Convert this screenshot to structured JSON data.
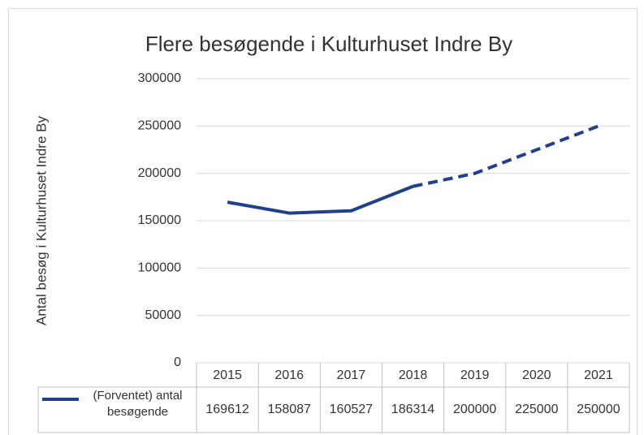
{
  "chart_data": {
    "type": "line",
    "title": "Flere besøgende i Kulturhuset Indre By",
    "y_label": "Antal besøg i Kulturhuset Indre By",
    "categories": [
      "2015",
      "2016",
      "2017",
      "2018",
      "2019",
      "2020",
      "2021"
    ],
    "series": [
      {
        "name": "(Forventet) antal besøgende",
        "color": "#203f8c",
        "values": [
          169612,
          158087,
          160527,
          186314,
          200000,
          225000,
          250000
        ]
      }
    ],
    "dashed_from": 3,
    "ylim": [
      0,
      300000
    ],
    "yticks": [
      0,
      50000,
      100000,
      150000,
      200000,
      250000,
      300000
    ],
    "grid": true,
    "data_table": true
  }
}
